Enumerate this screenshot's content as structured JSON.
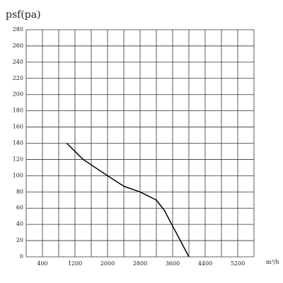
{
  "chart_data": {
    "type": "line",
    "y_label": "psf(pa)",
    "x_label": "m³/h",
    "x": [
      1000,
      1400,
      2000,
      2400,
      2800,
      3200,
      3400,
      3600,
      4000
    ],
    "series": [
      {
        "color": "#000000",
        "values": [
          140,
          120,
          100,
          87,
          80,
          70,
          57,
          38,
          0
        ]
      }
    ],
    "xlim": [
      0,
      5600
    ],
    "xticks": [
      400,
      1200,
      2000,
      2800,
      3600,
      4400,
      5200
    ],
    "xgrid": [
      0,
      400,
      800,
      1200,
      1600,
      2000,
      2400,
      2800,
      3200,
      3600,
      4000,
      4400,
      4800,
      5200,
      5600
    ],
    "ylim": [
      0,
      280
    ],
    "yticks": [
      0,
      20,
      40,
      60,
      80,
      100,
      120,
      140,
      160,
      180,
      200,
      220,
      240,
      260,
      280
    ],
    "grid": true
  }
}
